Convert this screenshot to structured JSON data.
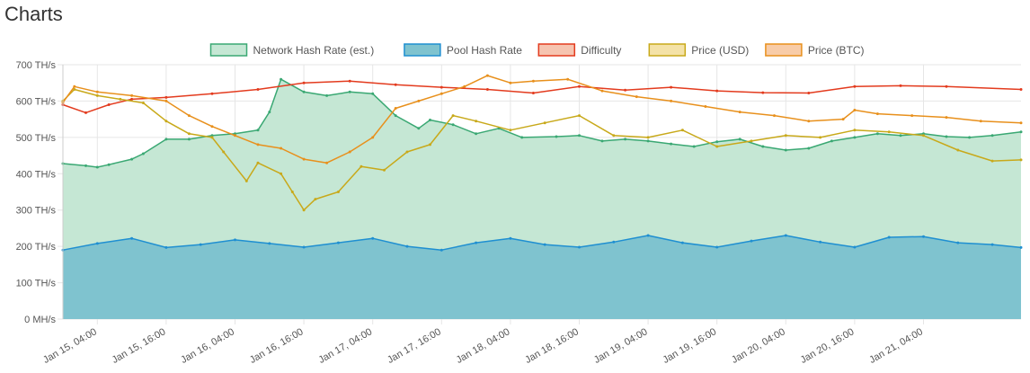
{
  "page": {
    "title": "Charts"
  },
  "chart_data": {
    "type": "area",
    "title": "",
    "xlabel": "",
    "ylabel": "",
    "legend_position": "top",
    "grid": true,
    "y_ticks": [
      "0 MH/s",
      "100 TH/s",
      "200 TH/s",
      "300 TH/s",
      "400 TH/s",
      "500 TH/s",
      "600 TH/s",
      "700 TH/s"
    ],
    "ylim": [
      0,
      700
    ],
    "y_unit": "TH/s",
    "x_start": "Jan 14, 22:00",
    "x_end": "Jan 21, 21:00",
    "x_ticks": [
      "Jan 15, 04:00",
      "Jan 15, 16:00",
      "Jan 16, 04:00",
      "Jan 16, 16:00",
      "Jan 17, 04:00",
      "Jan 17, 16:00",
      "Jan 18, 04:00",
      "Jan 18, 16:00",
      "Jan 19, 04:00",
      "Jan 19, 16:00",
      "Jan 20, 04:00",
      "Jan 20, 16:00",
      "Jan 21, 04:00"
    ],
    "series": [
      {
        "name": "Network Hash Rate (est.)",
        "fill": "#c5e7d4",
        "line": "#3aa873",
        "filled": true,
        "x": [
          "Jan 14, 22:00",
          "Jan 15, 02:00",
          "Jan 15, 04:00",
          "Jan 15, 06:00",
          "Jan 15, 10:00",
          "Jan 15, 12:00",
          "Jan 15, 16:00",
          "Jan 15, 20:00",
          "Jan 16, 00:00",
          "Jan 16, 04:00",
          "Jan 16, 08:00",
          "Jan 16, 10:00",
          "Jan 16, 12:00",
          "Jan 16, 16:00",
          "Jan 16, 20:00",
          "Jan 17, 00:00",
          "Jan 17, 04:00",
          "Jan 17, 08:00",
          "Jan 17, 12:00",
          "Jan 17, 14:00",
          "Jan 17, 18:00",
          "Jan 17, 22:00",
          "Jan 18, 02:00",
          "Jan 18, 06:00",
          "Jan 18, 12:00",
          "Jan 18, 16:00",
          "Jan 18, 20:00",
          "Jan 19, 00:00",
          "Jan 19, 04:00",
          "Jan 19, 08:00",
          "Jan 19, 12:00",
          "Jan 19, 16:00",
          "Jan 19, 20:00",
          "Jan 20, 00:00",
          "Jan 20, 04:00",
          "Jan 20, 08:00",
          "Jan 20, 12:00",
          "Jan 20, 16:00",
          "Jan 20, 20:00",
          "Jan 21, 00:00",
          "Jan 21, 04:00",
          "Jan 21, 08:00",
          "Jan 21, 12:00",
          "Jan 21, 16:00",
          "Jan 21, 21:00"
        ],
        "values": [
          428,
          422,
          418,
          425,
          440,
          455,
          495,
          495,
          505,
          510,
          520,
          570,
          660,
          625,
          615,
          625,
          620,
          560,
          525,
          548,
          535,
          510,
          525,
          500,
          502,
          505,
          490,
          495,
          490,
          482,
          475,
          488,
          495,
          475,
          465,
          470,
          490,
          500,
          510,
          505,
          510,
          502,
          500,
          505,
          515
        ]
      },
      {
        "name": "Pool Hash Rate",
        "fill": "#7fc3cf",
        "line": "#1f8fd1",
        "filled": true,
        "x": [
          "Jan 14, 22:00",
          "Jan 15, 04:00",
          "Jan 15, 10:00",
          "Jan 15, 16:00",
          "Jan 15, 22:00",
          "Jan 16, 04:00",
          "Jan 16, 10:00",
          "Jan 16, 16:00",
          "Jan 16, 22:00",
          "Jan 17, 04:00",
          "Jan 17, 10:00",
          "Jan 17, 16:00",
          "Jan 17, 22:00",
          "Jan 18, 04:00",
          "Jan 18, 10:00",
          "Jan 18, 16:00",
          "Jan 18, 22:00",
          "Jan 19, 04:00",
          "Jan 19, 10:00",
          "Jan 19, 16:00",
          "Jan 19, 22:00",
          "Jan 20, 04:00",
          "Jan 20, 10:00",
          "Jan 20, 16:00",
          "Jan 20, 22:00",
          "Jan 21, 04:00",
          "Jan 21, 10:00",
          "Jan 21, 16:00",
          "Jan 21, 21:00"
        ],
        "values": [
          190,
          208,
          222,
          197,
          205,
          218,
          208,
          198,
          210,
          222,
          200,
          190,
          210,
          222,
          205,
          198,
          212,
          230,
          210,
          198,
          215,
          230,
          212,
          198,
          225,
          227,
          210,
          205,
          197
        ]
      },
      {
        "name": "Difficulty",
        "fill": "#f6c4b0",
        "line": "#e33b1e",
        "filled": false,
        "x": [
          "Jan 14, 22:00",
          "Jan 15, 02:00",
          "Jan 15, 06:00",
          "Jan 15, 10:00",
          "Jan 15, 16:00",
          "Jan 16, 00:00",
          "Jan 16, 08:00",
          "Jan 16, 16:00",
          "Jan 17, 00:00",
          "Jan 17, 08:00",
          "Jan 17, 16:00",
          "Jan 18, 00:00",
          "Jan 18, 08:00",
          "Jan 18, 16:00",
          "Jan 19, 00:00",
          "Jan 19, 08:00",
          "Jan 19, 16:00",
          "Jan 20, 00:00",
          "Jan 20, 08:00",
          "Jan 20, 16:00",
          "Jan 21, 00:00",
          "Jan 21, 08:00",
          "Jan 21, 21:00"
        ],
        "values": [
          590,
          568,
          590,
          605,
          610,
          620,
          632,
          650,
          655,
          645,
          638,
          632,
          622,
          640,
          630,
          638,
          628,
          623,
          622,
          640,
          642,
          640,
          632
        ]
      },
      {
        "name": "Price (USD)",
        "fill": "#f4e2a7",
        "line": "#c8a91a",
        "filled": false,
        "x": [
          "Jan 14, 22:00",
          "Jan 15, 00:00",
          "Jan 15, 04:00",
          "Jan 15, 08:00",
          "Jan 15, 12:00",
          "Jan 15, 16:00",
          "Jan 15, 20:00",
          "Jan 16, 00:00",
          "Jan 16, 02:00",
          "Jan 16, 06:00",
          "Jan 16, 08:00",
          "Jan 16, 12:00",
          "Jan 16, 14:00",
          "Jan 16, 16:00",
          "Jan 16, 18:00",
          "Jan 16, 22:00",
          "Jan 17, 02:00",
          "Jan 17, 06:00",
          "Jan 17, 10:00",
          "Jan 17, 14:00",
          "Jan 17, 18:00",
          "Jan 17, 22:00",
          "Jan 18, 04:00",
          "Jan 18, 10:00",
          "Jan 18, 16:00",
          "Jan 18, 22:00",
          "Jan 19, 04:00",
          "Jan 19, 10:00",
          "Jan 19, 16:00",
          "Jan 19, 22:00",
          "Jan 20, 04:00",
          "Jan 20, 10:00",
          "Jan 20, 16:00",
          "Jan 20, 22:00",
          "Jan 21, 04:00",
          "Jan 21, 10:00",
          "Jan 21, 16:00",
          "Jan 21, 21:00"
        ],
        "values": [
          600,
          632,
          615,
          605,
          595,
          545,
          510,
          500,
          460,
          380,
          430,
          400,
          350,
          300,
          330,
          350,
          420,
          410,
          460,
          480,
          560,
          545,
          520,
          540,
          560,
          505,
          500,
          520,
          475,
          490,
          505,
          500,
          520,
          515,
          505,
          465,
          435,
          438
        ]
      },
      {
        "name": "Price (BTC)",
        "fill": "#f8cca8",
        "line": "#e8901c",
        "filled": false,
        "x": [
          "Jan 14, 22:00",
          "Jan 15, 00:00",
          "Jan 15, 04:00",
          "Jan 15, 10:00",
          "Jan 15, 16:00",
          "Jan 15, 20:00",
          "Jan 16, 00:00",
          "Jan 16, 04:00",
          "Jan 16, 08:00",
          "Jan 16, 12:00",
          "Jan 16, 16:00",
          "Jan 16, 20:00",
          "Jan 17, 00:00",
          "Jan 17, 04:00",
          "Jan 17, 08:00",
          "Jan 17, 12:00",
          "Jan 17, 16:00",
          "Jan 17, 20:00",
          "Jan 18, 00:00",
          "Jan 18, 04:00",
          "Jan 18, 08:00",
          "Jan 18, 14:00",
          "Jan 18, 20:00",
          "Jan 19, 02:00",
          "Jan 19, 08:00",
          "Jan 19, 14:00",
          "Jan 19, 20:00",
          "Jan 20, 02:00",
          "Jan 20, 08:00",
          "Jan 20, 14:00",
          "Jan 20, 16:00",
          "Jan 20, 20:00",
          "Jan 21, 02:00",
          "Jan 21, 08:00",
          "Jan 21, 14:00",
          "Jan 21, 21:00"
        ],
        "values": [
          596,
          640,
          625,
          615,
          600,
          560,
          530,
          505,
          480,
          470,
          440,
          430,
          460,
          500,
          580,
          600,
          620,
          640,
          670,
          650,
          655,
          660,
          628,
          612,
          600,
          585,
          570,
          560,
          545,
          550,
          575,
          565,
          560,
          555,
          545,
          540
        ]
      }
    ]
  }
}
